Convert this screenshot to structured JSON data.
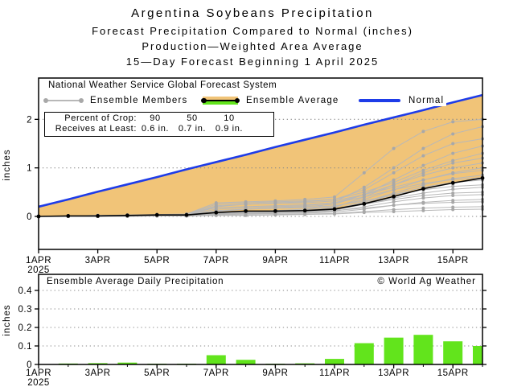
{
  "title": {
    "line1": "Argentina Soybeans Precipitation",
    "line2": "Forecast Precipitation Compared to Normal (inches)",
    "line3": "Production—Weighted Area Average",
    "line4": "15—Day Forecast Beginning 1 April 2025"
  },
  "top_chart": {
    "legend": {
      "header": "National Weather Service Global Forecast System",
      "ensemble_members_label": "Ensemble Members",
      "ensemble_average_label": "Ensemble Average",
      "normal_label": "Normal"
    },
    "crop_table": {
      "row1_label": "Percent of Crop:",
      "row1_values": [
        "90",
        "50",
        "10"
      ],
      "row2_label": "Receives at Least:",
      "row2_values": [
        "0.6 in.",
        "0.7 in.",
        "0.9 in."
      ]
    },
    "ylabel": "inches"
  },
  "bottom_chart": {
    "title": "Ensemble Average Daily Precipitation",
    "copyright": "© World Ag Weather",
    "ylabel": "inches"
  },
  "colors": {
    "deficit_fill": "#f1c478",
    "bar_green": "#62e41c",
    "normal_blue": "#1e3ce8",
    "member_line": "#b8b8b8",
    "member_dot": "#a8a8a8",
    "average_black": "#000000",
    "grid_gray": "#8a8a8a"
  },
  "chart_data": [
    {
      "type": "line",
      "title": "Forecast cumulative precipitation compared to normal (inches)",
      "x_days": [
        1,
        2,
        3,
        4,
        5,
        6,
        7,
        8,
        9,
        10,
        11,
        12,
        13,
        14,
        15,
        16
      ],
      "x_tick_days": [
        1,
        3,
        5,
        7,
        9,
        11,
        13,
        15
      ],
      "x_tick_labels": [
        "1APR",
        "3APR",
        "5APR",
        "7APR",
        "9APR",
        "11APR",
        "13APR",
        "15APR"
      ],
      "x_year_label": "2025",
      "y_ticks": [
        0,
        1,
        2
      ],
      "y_tick_labels": [
        "0",
        "1",
        "2"
      ],
      "ylabel": "inches",
      "ylim": [
        -0.7,
        2.85
      ],
      "grid": "dotted-horizontal",
      "legend_position": "top-inside",
      "normal": [
        0.2,
        0.35,
        0.51,
        0.66,
        0.81,
        0.97,
        1.12,
        1.27,
        1.43,
        1.58,
        1.73,
        1.89,
        2.04,
        2.19,
        2.35,
        2.5
      ],
      "ensemble_average": [
        0.0,
        0.01,
        0.01,
        0.02,
        0.03,
        0.03,
        0.08,
        0.11,
        0.11,
        0.12,
        0.15,
        0.26,
        0.41,
        0.57,
        0.69,
        0.79
      ],
      "ensemble_members": [
        [
          0,
          0.01,
          0.02,
          0.03,
          0.04,
          0.05,
          0.28,
          0.3,
          0.32,
          0.35,
          0.4,
          0.9,
          1.4,
          1.75,
          1.95,
          2.0
        ],
        [
          0,
          0,
          0.01,
          0.02,
          0.02,
          0.03,
          0.05,
          0.08,
          0.1,
          0.12,
          0.3,
          0.6,
          1.0,
          1.4,
          1.7,
          1.85
        ],
        [
          0,
          0.01,
          0.01,
          0.02,
          0.03,
          0.03,
          0.2,
          0.25,
          0.28,
          0.3,
          0.35,
          0.55,
          0.9,
          1.25,
          1.5,
          1.6
        ],
        [
          0,
          0,
          0.01,
          0.01,
          0.02,
          0.02,
          0.1,
          0.15,
          0.18,
          0.2,
          0.25,
          0.45,
          0.75,
          1.05,
          1.3,
          1.45
        ],
        [
          0,
          0.01,
          0.02,
          0.03,
          0.03,
          0.04,
          0.25,
          0.28,
          0.3,
          0.32,
          0.35,
          0.5,
          0.7,
          0.95,
          1.15,
          1.3
        ],
        [
          0,
          0,
          0,
          0.01,
          0.01,
          0.02,
          0.05,
          0.08,
          0.1,
          0.12,
          0.18,
          0.4,
          0.65,
          0.9,
          1.1,
          1.2
        ],
        [
          0,
          0.01,
          0.01,
          0.02,
          0.02,
          0.03,
          0.15,
          0.18,
          0.2,
          0.22,
          0.28,
          0.45,
          0.65,
          0.85,
          1.0,
          1.1
        ],
        [
          0,
          0,
          0.01,
          0.01,
          0.02,
          0.02,
          0.08,
          0.1,
          0.12,
          0.15,
          0.2,
          0.35,
          0.55,
          0.75,
          0.9,
          1.0
        ],
        [
          0,
          0.01,
          0.01,
          0.02,
          0.03,
          0.03,
          0.22,
          0.25,
          0.27,
          0.28,
          0.32,
          0.45,
          0.6,
          0.75,
          0.88,
          0.95
        ],
        [
          0,
          0,
          0.01,
          0.01,
          0.01,
          0.02,
          0.06,
          0.08,
          0.1,
          0.12,
          0.15,
          0.3,
          0.48,
          0.65,
          0.78,
          0.85
        ],
        [
          0,
          0.01,
          0.02,
          0.02,
          0.03,
          0.04,
          0.18,
          0.2,
          0.22,
          0.24,
          0.28,
          0.4,
          0.55,
          0.68,
          0.76,
          0.8
        ],
        [
          0,
          0,
          0,
          0.01,
          0.01,
          0.01,
          0.04,
          0.06,
          0.08,
          0.1,
          0.14,
          0.28,
          0.45,
          0.6,
          0.7,
          0.75
        ],
        [
          0,
          0.01,
          0.01,
          0.02,
          0.02,
          0.03,
          0.12,
          0.15,
          0.17,
          0.18,
          0.22,
          0.32,
          0.45,
          0.55,
          0.62,
          0.65
        ],
        [
          0,
          0,
          0.01,
          0.01,
          0.02,
          0.02,
          0.05,
          0.07,
          0.09,
          0.1,
          0.13,
          0.25,
          0.38,
          0.48,
          0.56,
          0.6
        ],
        [
          0,
          0.01,
          0.01,
          0.01,
          0.02,
          0.02,
          0.08,
          0.1,
          0.12,
          0.13,
          0.16,
          0.25,
          0.35,
          0.43,
          0.48,
          0.5
        ],
        [
          0,
          0,
          0.01,
          0.01,
          0.01,
          0.02,
          0.04,
          0.05,
          0.07,
          0.08,
          0.11,
          0.2,
          0.3,
          0.38,
          0.43,
          0.45
        ],
        [
          0,
          0,
          0,
          0.01,
          0.01,
          0.01,
          0.03,
          0.05,
          0.06,
          0.07,
          0.09,
          0.15,
          0.23,
          0.29,
          0.33,
          0.35
        ],
        [
          0,
          0.01,
          0.01,
          0.01,
          0.02,
          0.02,
          0.06,
          0.08,
          0.09,
          0.1,
          0.12,
          0.17,
          0.23,
          0.27,
          0.29,
          0.3
        ],
        [
          0,
          0,
          0,
          0.01,
          0.01,
          0.01,
          0.02,
          0.03,
          0.04,
          0.05,
          0.06,
          0.1,
          0.14,
          0.17,
          0.19,
          0.2
        ],
        [
          0,
          0,
          0,
          0,
          0.01,
          0.01,
          0.02,
          0.02,
          0.03,
          0.04,
          0.05,
          0.08,
          0.1,
          0.12,
          0.14,
          0.15
        ]
      ]
    },
    {
      "type": "bar",
      "title": "Ensemble Average Daily Precipitation",
      "x_days": [
        1,
        2,
        3,
        4,
        5,
        6,
        7,
        8,
        9,
        10,
        11,
        12,
        13,
        14,
        15,
        16
      ],
      "x_tick_days": [
        1,
        3,
        5,
        7,
        9,
        11,
        13,
        15
      ],
      "x_tick_labels": [
        "1APR",
        "3APR",
        "5APR",
        "7APR",
        "9APR",
        "11APR",
        "13APR",
        "15APR"
      ],
      "x_year_label": "2025",
      "y_ticks": [
        0,
        0.1,
        0.2,
        0.3,
        0.4
      ],
      "y_tick_labels": [
        "0",
        "0.1",
        "0.2",
        "0.3",
        "0.4"
      ],
      "ylabel": "inches",
      "ylim": [
        0,
        0.487
      ],
      "grid": "dotted-horizontal",
      "values": [
        0.002,
        0.005,
        0.007,
        0.01,
        0.004,
        0.004,
        0.05,
        0.025,
        0.004,
        0.006,
        0.03,
        0.115,
        0.145,
        0.16,
        0.125,
        0.1
      ]
    }
  ]
}
